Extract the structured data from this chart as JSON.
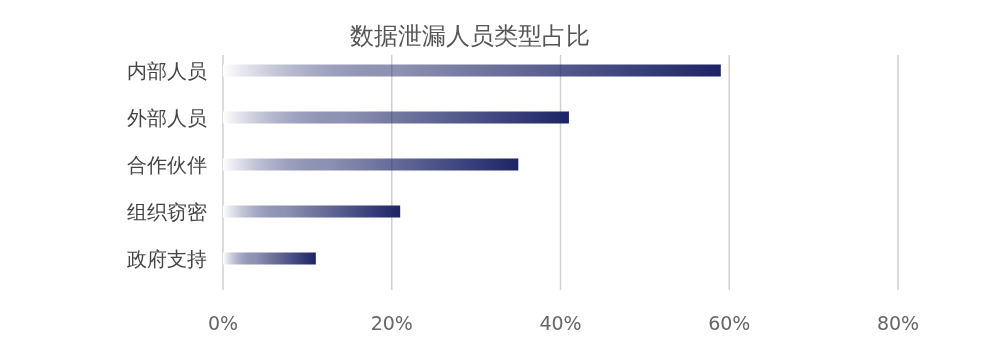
{
  "chart_data": {
    "type": "bar",
    "orientation": "horizontal",
    "title": "数据泄漏人员类型占比",
    "categories": [
      "内部人员",
      "外部人员",
      "合作伙伴",
      "组织窃密",
      "政府支持"
    ],
    "values": [
      59,
      41,
      35,
      21,
      11
    ],
    "color": "#1c2466",
    "xlim": [
      0,
      80
    ],
    "xticks": [
      {
        "value": 0,
        "label": "0%"
      },
      {
        "value": 20,
        "label": "20%"
      },
      {
        "value": 40,
        "label": "40%"
      },
      {
        "value": 60,
        "label": "60%"
      },
      {
        "value": 80,
        "label": "80%"
      }
    ],
    "grid": "x"
  }
}
